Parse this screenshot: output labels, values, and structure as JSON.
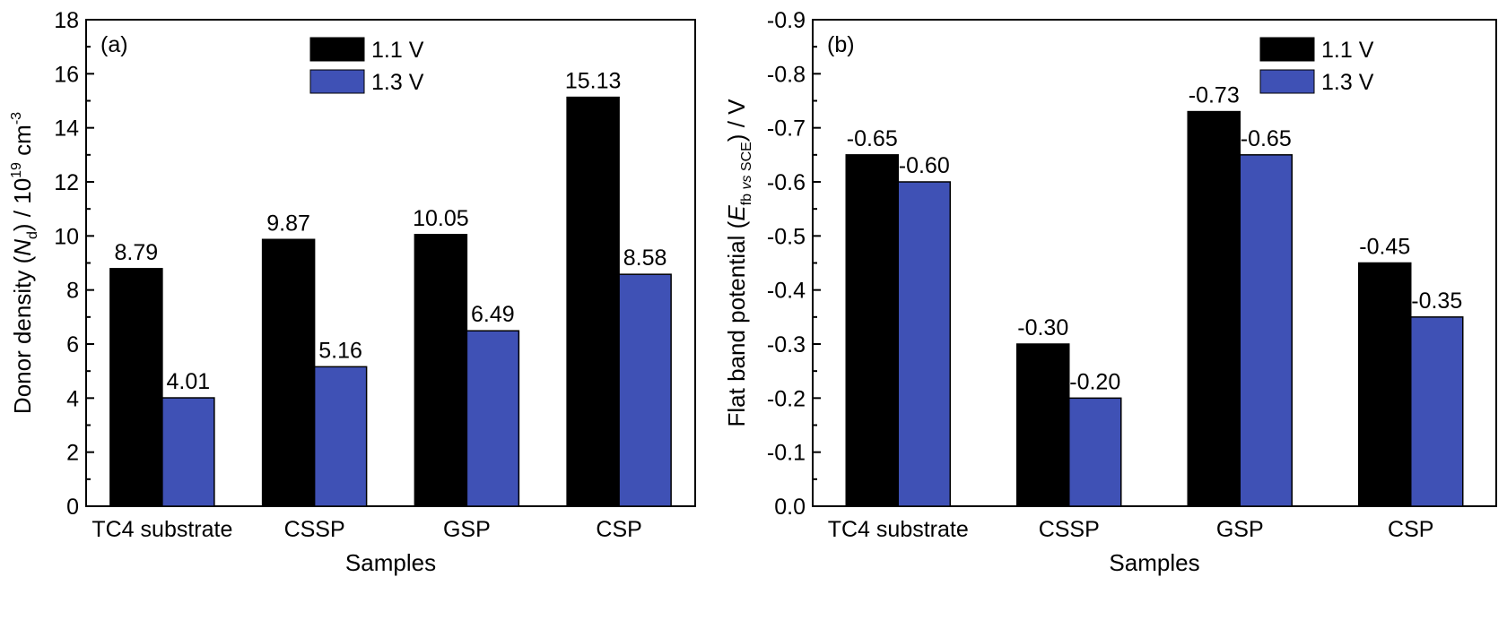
{
  "chart_data": [
    {
      "type": "bar",
      "panel_label": "(a)",
      "categories": [
        "TC4 substrate",
        "CSSP",
        "GSP",
        "CSP"
      ],
      "series": [
        {
          "name": "1.1 V",
          "color": "#000000",
          "values": [
            8.79,
            9.87,
            10.05,
            15.13
          ]
        },
        {
          "name": "1.3 V",
          "color": "#3f51b5",
          "values": [
            4.01,
            5.16,
            6.49,
            8.58
          ]
        }
      ],
      "data_labels": [
        [
          "8.79",
          "9.87",
          "10.05",
          "15.13"
        ],
        [
          "4.01",
          "5.16",
          "6.49",
          "8.58"
        ]
      ],
      "xlabel": "Samples",
      "ylabel": {
        "prefix": "Donor density (",
        "italic": "N",
        "sub": "d",
        "mid": ") / 10",
        "sup1": "19",
        "unit": " cm",
        "sup2": "-3"
      },
      "ylim": [
        0,
        18
      ],
      "yticks": [
        0,
        2,
        4,
        6,
        8,
        10,
        12,
        14,
        16,
        18
      ],
      "ytick_labels": [
        "0",
        "2",
        "4",
        "6",
        "8",
        "10",
        "12",
        "14",
        "16",
        "18"
      ],
      "grid": false,
      "legend_position": "top-center"
    },
    {
      "type": "bar",
      "panel_label": "(b)",
      "categories": [
        "TC4 substrate",
        "CSSP",
        "GSP",
        "CSP"
      ],
      "series": [
        {
          "name": "1.1 V",
          "color": "#000000",
          "values": [
            -0.65,
            -0.3,
            -0.73,
            -0.45
          ]
        },
        {
          "name": "1.3 V",
          "color": "#3f51b5",
          "values": [
            -0.6,
            -0.2,
            -0.65,
            -0.35
          ]
        }
      ],
      "data_labels": [
        [
          "-0.65",
          "-0.30",
          "-0.73",
          "-0.45"
        ],
        [
          "-0.60",
          "-0.20",
          "-0.65",
          "-0.35"
        ]
      ],
      "xlabel": "Samples",
      "ylabel": {
        "prefix": "Flat band potential (",
        "italic": "E",
        "sub": "fb ",
        "sub_italic": "vs",
        "sub_end": " SCE",
        "suffix": ") / V"
      },
      "ylim": [
        0,
        -0.9
      ],
      "y_reversed": true,
      "yticks": [
        0,
        -0.1,
        -0.2,
        -0.3,
        -0.4,
        -0.5,
        -0.6,
        -0.7,
        -0.8,
        -0.9
      ],
      "ytick_labels": [
        "0.0",
        "-0.1",
        "-0.2",
        "-0.3",
        "-0.4",
        "-0.5",
        "-0.6",
        "-0.7",
        "-0.8",
        "-0.9"
      ],
      "grid": false,
      "legend_position": "top-right"
    }
  ]
}
